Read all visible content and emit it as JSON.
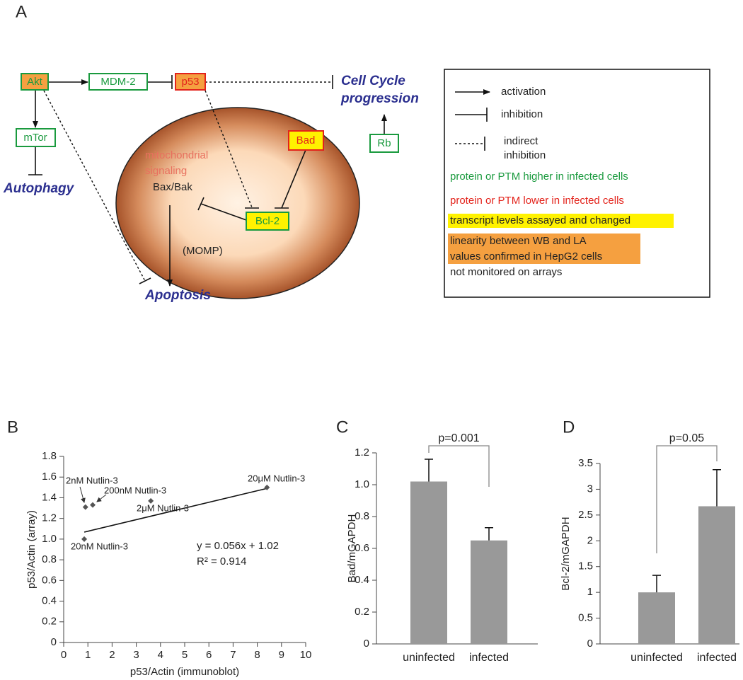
{
  "diagram": {
    "panel_label": "A",
    "nodes": [
      "Akt",
      "MDM-2",
      "p53",
      "mTor",
      "Rb",
      "Bad",
      "Bcl-2"
    ],
    "cell_cycle": [
      "Cell Cycle",
      "progression"
    ],
    "autophagy": "Autophagy",
    "apoptosis": "Apoptosis",
    "mitochondrial": [
      "mitochondrial",
      "signaling"
    ],
    "bax_bak": "Bax/Bak",
    "momp": "(MOMP)",
    "legend": {
      "activation": "activation",
      "inhibition": "inhibition",
      "indirect": [
        "indirect",
        "inhibition"
      ],
      "higher": "protein or PTM higher in infected cells",
      "lower": "protein or PTM lower in infected cells",
      "transcript": "transcript levels assayed and changed",
      "linearity": [
        "linearity between WB and LA",
        "values confirmed in HepG2 cells"
      ],
      "not_monitored": "not monitored on arrays"
    }
  },
  "chart_data": [
    {
      "type": "scatter",
      "panel_label": "B",
      "xlabel": "p53/Actin (immunoblot)",
      "ylabel": "p53/Actin (array)",
      "x": [
        0.85,
        0.9,
        1.2,
        3.6,
        8.4
      ],
      "values": [
        1.0,
        1.31,
        1.33,
        1.37,
        1.5
      ],
      "point_labels": [
        "20nM Nutlin-3",
        "2nM Nutlin-3",
        "200nM Nutlin-3",
        "2μM Nutlin-3",
        "20μM Nutlin-3"
      ],
      "fit": {
        "slope": 0.056,
        "intercept": 1.02
      },
      "equation": "y = 0.056x + 1.02",
      "r_squared": "R² = 0.914",
      "xlim": [
        0,
        10
      ],
      "ylim": [
        0,
        1.8
      ],
      "xticks": [
        0,
        1,
        2,
        3,
        4,
        5,
        6,
        7,
        8,
        9,
        10
      ],
      "yticks": [
        0,
        0.2,
        0.4,
        0.6,
        0.8,
        {
          "value": 1,
          "label": "1.0"
        },
        1.2,
        1.4,
        1.6,
        1.8
      ],
      "color": "#555555"
    },
    {
      "type": "bar",
      "panel_label": "C",
      "ylabel": "Bad/mGAPDH",
      "categories": [
        "uninfected",
        "infected"
      ],
      "values": [
        1.02,
        0.65
      ],
      "errors": [
        0.14,
        0.08
      ],
      "annotation": "p=0.001",
      "ylim": [
        0,
        1.2
      ],
      "yticks": [
        0,
        0.2,
        0.4,
        0.6,
        0.8,
        {
          "value": 1,
          "label": "1.0"
        },
        1.2
      ],
      "color": "#999999"
    },
    {
      "type": "bar",
      "panel_label": "D",
      "ylabel": "Bcl-2/mGAPDH",
      "categories": [
        "uninfected",
        "infected"
      ],
      "values": [
        1.0,
        2.67
      ],
      "errors": [
        0.33,
        0.71
      ],
      "annotation": "p=0.05",
      "ylim": [
        0,
        3.5
      ],
      "yticks": [
        0,
        0.5,
        1,
        1.5,
        2,
        2.5,
        3,
        3.5
      ],
      "color": "#999999"
    }
  ]
}
